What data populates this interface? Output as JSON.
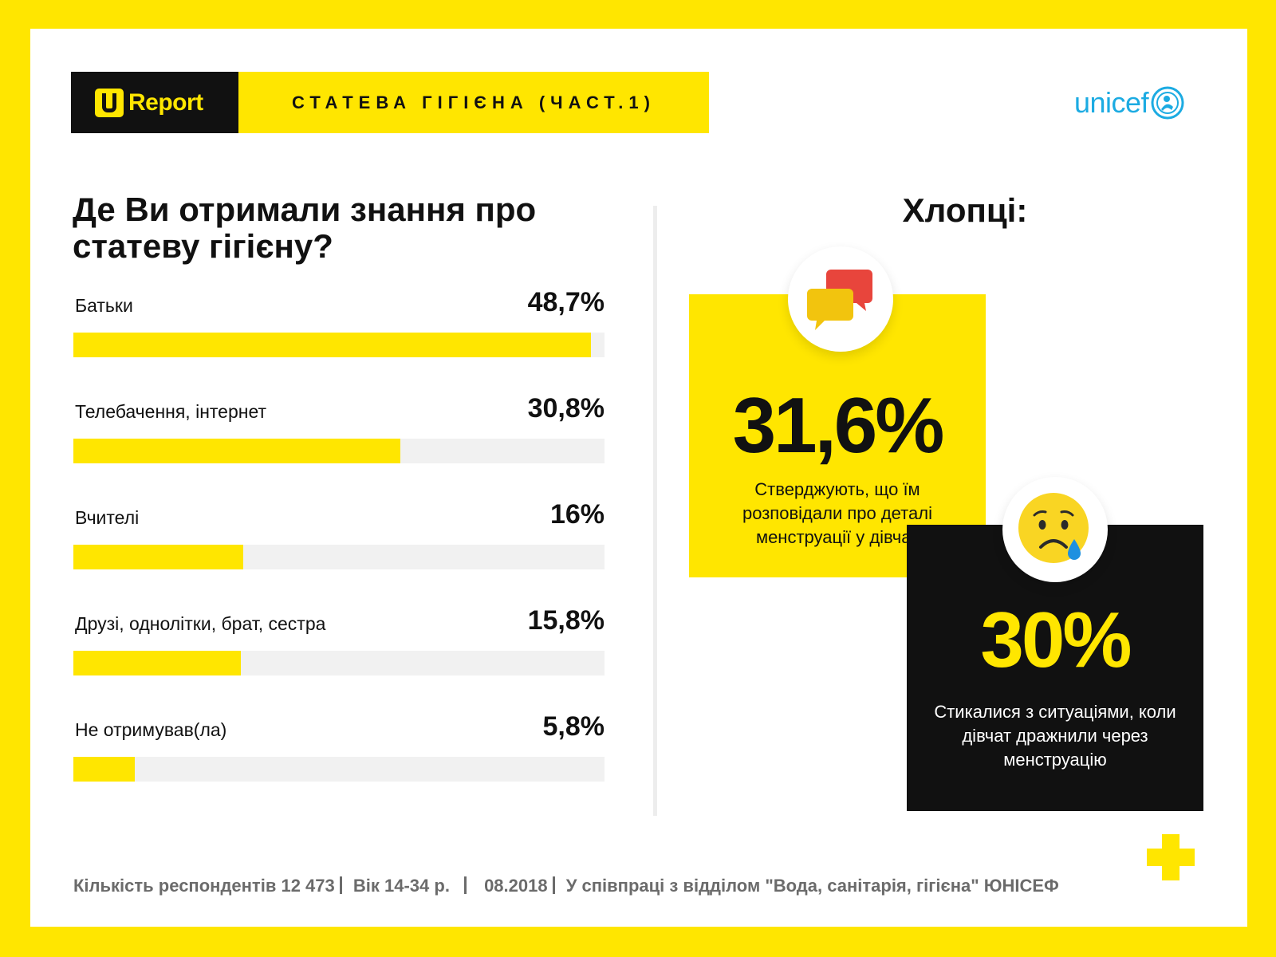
{
  "header": {
    "brand": "Report",
    "topic": "СТАТЕВА ГІГІЄНА (ЧАСТ.1)",
    "partner": "unicef"
  },
  "colors": {
    "accent": "#FFE600",
    "dark": "#111111",
    "track": "#F1F1F1",
    "unicef": "#1CABE2"
  },
  "chart_data": {
    "type": "bar",
    "title": "Де Ви отримали знання про статеву гігієну?",
    "categories": [
      "Батьки",
      "Телебачення, інтернет",
      "Вчителі",
      "Друзі, однолітки, брат, сестра",
      "Не отримував(ла)"
    ],
    "values": [
      48.7,
      30.8,
      16,
      15.8,
      5.8
    ],
    "value_labels": [
      "48,7%",
      "30,8%",
      "16%",
      "15,8%",
      "5,8%"
    ],
    "xlim": [
      0,
      50
    ]
  },
  "boys": {
    "title": "Хлопці:",
    "stat1": {
      "value": "31,6%",
      "text": "Стверджують, що їм розповідали про деталі менструації у дівчат",
      "icon": "chat-bubbles-icon"
    },
    "stat2": {
      "value": "30%",
      "text": "Стикалися з ситуаціями, коли дівчат дражнили через менструацію",
      "icon": "sad-crying-face-icon"
    }
  },
  "footer": {
    "respondents": "Кількість респондентів 12 473",
    "age": "Вік 14-34 р.",
    "date": "08.2018",
    "partner": "У співпраці з відділом \"Вода, санітарія, гігієна\" ЮНІСЕФ"
  }
}
